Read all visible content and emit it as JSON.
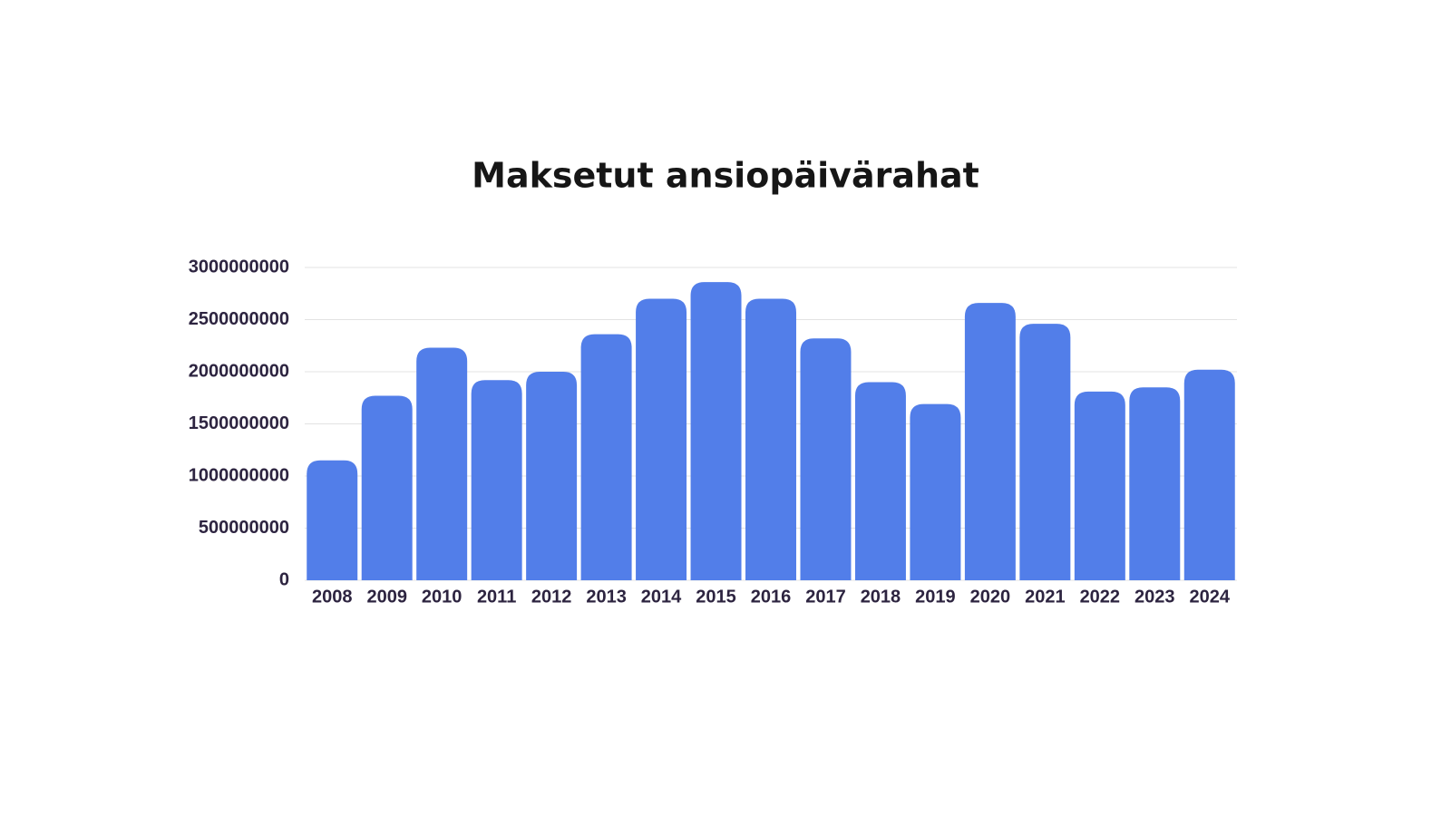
{
  "chart_data": {
    "type": "bar",
    "title": "Maksetut ansiopäivärahat",
    "categories": [
      "2008",
      "2009",
      "2010",
      "2011",
      "2012",
      "2013",
      "2014",
      "2015",
      "2016",
      "2017",
      "2018",
      "2019",
      "2020",
      "2021",
      "2022",
      "2023",
      "2024"
    ],
    "values": [
      1150000000,
      1770000000,
      2230000000,
      1920000000,
      2000000000,
      2360000000,
      2700000000,
      2860000000,
      2700000000,
      2320000000,
      1900000000,
      1690000000,
      2660000000,
      2460000000,
      1810000000,
      1850000000,
      2020000000
    ],
    "color": "#527ee9",
    "ylim": [
      0,
      3000000000
    ],
    "yticks": [
      0,
      500000000,
      1000000000,
      1500000000,
      2000000000,
      2500000000,
      3000000000
    ],
    "grid": true
  }
}
